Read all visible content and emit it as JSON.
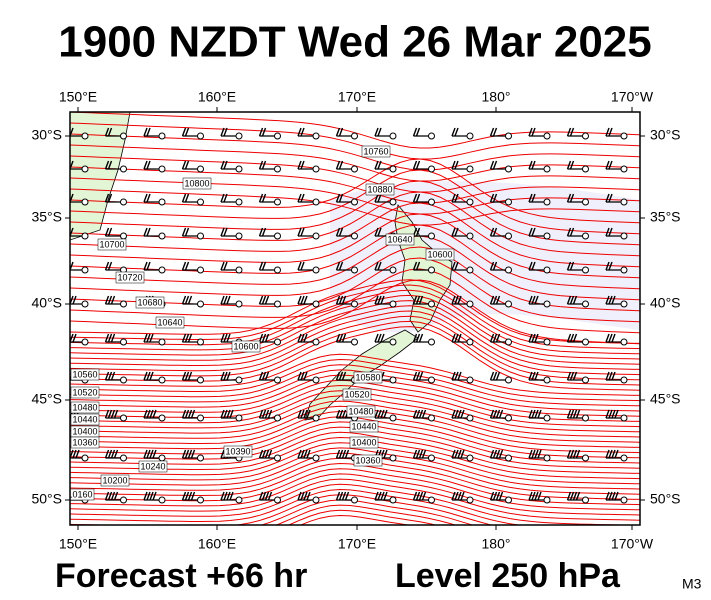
{
  "header": {
    "title": "1900 NZDT Wed 26 Mar 2025"
  },
  "map": {
    "top_labels": [
      "150°E",
      "160°E",
      "170°E",
      "180°",
      "170°W"
    ],
    "bottom_labels": [
      "150°E",
      "160°E",
      "170°E",
      "180°",
      "170°W"
    ],
    "left_labels": [
      "30°S",
      "35°S",
      "40°S",
      "45°S",
      "50°S"
    ],
    "right_labels": [
      "30°S",
      "35°S",
      "40°S",
      "45°S",
      "50°S"
    ],
    "contour_labels": [
      "10760",
      "10800",
      "10880",
      "10640",
      "10600",
      "10700",
      "10720",
      "10680",
      "10640",
      "10600",
      "10560",
      "10520",
      "10480",
      "10440",
      "10400",
      "10360",
      "10240",
      "10200",
      "10160",
      "10580",
      "10520",
      "10480",
      "10440",
      "10400",
      "10360",
      "10390"
    ]
  },
  "footer": {
    "forecast": "Forecast +66 hr",
    "level": "Level 250 hPa",
    "code": "M3"
  }
}
